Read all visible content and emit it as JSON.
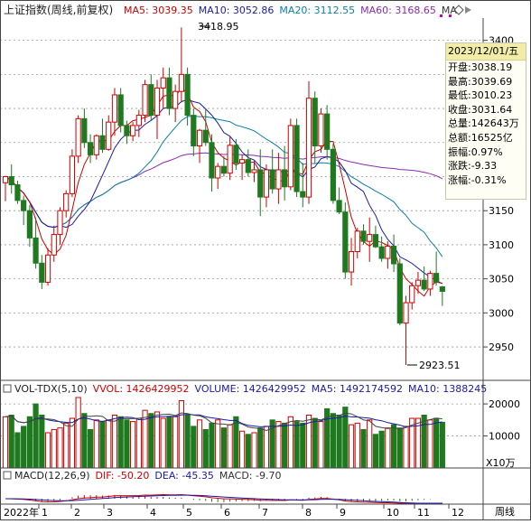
{
  "main_panel": {
    "title": "上证指数(周线,前复权)",
    "ma_labels": [
      {
        "text": "MA5: 3039.35",
        "color": "#cc0000"
      },
      {
        "text": "MA10: 3052.86",
        "color": "#1a1aa8"
      },
      {
        "text": "MA20: 3112.55",
        "color": "#0b7fa8"
      },
      {
        "text": "MA60: 3168.65",
        "color": "#8a2bb0"
      },
      {
        "text": "MA",
        "color": "#333333"
      }
    ],
    "price_axis": [
      "3400",
      "3350",
      "3300",
      "3250",
      "3200",
      "3150",
      "3100",
      "3050",
      "3000",
      "2950"
    ],
    "high_marker": "3418.95",
    "low_marker": "2923.51"
  },
  "info_box": {
    "date": "2023/12/01/五",
    "rows": [
      "开盘:3038.19",
      "最高:3039.69",
      "最低:3010.23",
      "收盘:3031.64",
      "总量:142643万",
      "总额:16525亿",
      "振幅:0.97%",
      "涨跌:-9.33",
      "涨幅:-0.31%"
    ]
  },
  "volume_panel": {
    "labels": [
      {
        "text": "VOL-TDX(5,10)",
        "color": "#222222"
      },
      {
        "text": "VVOL: 1426429952",
        "color": "#cc0000"
      },
      {
        "text": "VOLUME: 1426429952",
        "color": "#1a1aa8"
      },
      {
        "text": "MA5: 1492174592",
        "color": "#1a1aa8"
      },
      {
        "text": "MA10: 1388245",
        "color": "#1a1aa8"
      }
    ],
    "axis": [
      "20000",
      "10000"
    ],
    "unit": "X10万"
  },
  "macd_panel": {
    "labels": [
      {
        "text": "MACD(12,26,9)",
        "color": "#222222"
      },
      {
        "text": "DIF: -50.20",
        "color": "#cc0000"
      },
      {
        "text": "DEA: -45.35",
        "color": "#1a1aa8"
      },
      {
        "text": "MACD: -9.70",
        "color": "#333333"
      }
    ]
  },
  "time_axis": {
    "labels": [
      "2022年",
      "1",
      "2",
      "3",
      "4",
      "5",
      "6",
      "7",
      "8",
      "9",
      "10",
      "11",
      "12"
    ],
    "period": "周线"
  },
  "colors": {
    "up": "#cc0000",
    "down": "#1f7a1f",
    "ma5": "#cc0000",
    "ma10": "#1a1aa8",
    "ma20": "#0b7fa8",
    "ma60": "#8a2bb0",
    "ma_long": "#7a1414"
  },
  "chart_data": {
    "type": "candlestick",
    "period": "weekly",
    "candles": [
      [
        3191,
        3201,
        3164,
        3200
      ],
      [
        3200,
        3218,
        3175,
        3188
      ],
      [
        3188,
        3194,
        3160,
        3165
      ],
      [
        3165,
        3172,
        3129,
        3150
      ],
      [
        3150,
        3158,
        3097,
        3110
      ],
      [
        3110,
        3140,
        3065,
        3073
      ],
      [
        3073,
        3085,
        3035,
        3045
      ],
      [
        3045,
        3095,
        3040,
        3085
      ],
      [
        3085,
        3128,
        3075,
        3115
      ],
      [
        3115,
        3155,
        3100,
        3150
      ],
      [
        3150,
        3180,
        3140,
        3175
      ],
      [
        3175,
        3240,
        3170,
        3230
      ],
      [
        3230,
        3290,
        3220,
        3285
      ],
      [
        3285,
        3300,
        3242,
        3250
      ],
      [
        3250,
        3262,
        3220,
        3232
      ],
      [
        3232,
        3262,
        3225,
        3260
      ],
      [
        3260,
        3285,
        3235,
        3240
      ],
      [
        3240,
        3290,
        3238,
        3280
      ],
      [
        3280,
        3330,
        3260,
        3320
      ],
      [
        3320,
        3330,
        3265,
        3275
      ],
      [
        3275,
        3282,
        3248,
        3260
      ],
      [
        3260,
        3280,
        3252,
        3275
      ],
      [
        3275,
        3298,
        3258,
        3290
      ],
      [
        3290,
        3342,
        3280,
        3335
      ],
      [
        3335,
        3350,
        3282,
        3290
      ],
      [
        3290,
        3342,
        3255,
        3330
      ],
      [
        3330,
        3360,
        3300,
        3345
      ],
      [
        3345,
        3360,
        3290,
        3300
      ],
      [
        3300,
        3335,
        3280,
        3325
      ],
      [
        3325,
        3418.95,
        3310,
        3350
      ],
      [
        3350,
        3360,
        3275,
        3290
      ],
      [
        3290,
        3300,
        3230,
        3245
      ],
      [
        3245,
        3270,
        3220,
        3268
      ],
      [
        3268,
        3300,
        3245,
        3250
      ],
      [
        3250,
        3262,
        3178,
        3198
      ],
      [
        3198,
        3220,
        3182,
        3215
      ],
      [
        3215,
        3230,
        3200,
        3205
      ],
      [
        3205,
        3258,
        3195,
        3246
      ],
      [
        3246,
        3255,
        3210,
        3220
      ],
      [
        3220,
        3232,
        3195,
        3225
      ],
      [
        3225,
        3240,
        3200,
        3206
      ],
      [
        3206,
        3223,
        3192,
        3210
      ],
      [
        3210,
        3240,
        3142,
        3170
      ],
      [
        3170,
        3218,
        3155,
        3210
      ],
      [
        3210,
        3240,
        3175,
        3182
      ],
      [
        3182,
        3235,
        3160,
        3210
      ],
      [
        3210,
        3245,
        3165,
        3185
      ],
      [
        3185,
        3285,
        3180,
        3275
      ],
      [
        3275,
        3285,
        3170,
        3178
      ],
      [
        3178,
        3220,
        3155,
        3170
      ],
      [
        3170,
        3340,
        3160,
        3315
      ],
      [
        3315,
        3325,
        3220,
        3245
      ],
      [
        3245,
        3300,
        3235,
        3292
      ],
      [
        3292,
        3305,
        3225,
        3240
      ],
      [
        3240,
        3248,
        3160,
        3165
      ],
      [
        3165,
        3184,
        3145,
        3148
      ],
      [
        3148,
        3162,
        3050,
        3060
      ],
      [
        3060,
        3110,
        3040,
        3090
      ],
      [
        3090,
        3125,
        3080,
        3120
      ],
      [
        3120,
        3130,
        3100,
        3105
      ],
      [
        3105,
        3140,
        3075,
        3115
      ],
      [
        3115,
        3128,
        3095,
        3097
      ],
      [
        3097,
        3112,
        3075,
        3080
      ],
      [
        3080,
        3105,
        3065,
        3098
      ],
      [
        3098,
        3115,
        3060,
        3072
      ],
      [
        3072,
        3080,
        2982,
        2985
      ],
      [
        2985,
        3025,
        2923.51,
        3015
      ],
      [
        3015,
        3045,
        3005,
        3040
      ],
      [
        3040,
        3060,
        3028,
        3048
      ],
      [
        3048,
        3068,
        3032,
        3035
      ],
      [
        3035,
        3062,
        3025,
        3058
      ],
      [
        3058,
        3090,
        3040,
        3045
      ],
      [
        3038.19,
        3039.69,
        3010.23,
        3031.64
      ]
    ],
    "volume": [
      16000,
      16500,
      11000,
      13000,
      16000,
      20000,
      16500,
      11000,
      12000,
      12500,
      14000,
      15500,
      22000,
      17000,
      12000,
      15000,
      14500,
      15000,
      16500,
      16000,
      15000,
      14500,
      15500,
      18000,
      17000,
      17500,
      15500,
      16000,
      16000,
      21000,
      16500,
      13000,
      15000,
      12000,
      14000,
      15000,
      12500,
      13500,
      16000,
      11500,
      10500,
      11000,
      12500,
      13000,
      15000,
      14500,
      14000,
      16000,
      14500,
      14000,
      16500,
      15500,
      14500,
      18500,
      17000,
      16500,
      19000,
      13500,
      14000,
      12000,
      15000,
      10500,
      11500,
      12500,
      13500,
      12500,
      13000,
      15500,
      15500,
      16500,
      15000,
      15500,
      14264
    ],
    "price_range": [
      2905,
      3430
    ],
    "volume_range": [
      0,
      22000
    ]
  }
}
